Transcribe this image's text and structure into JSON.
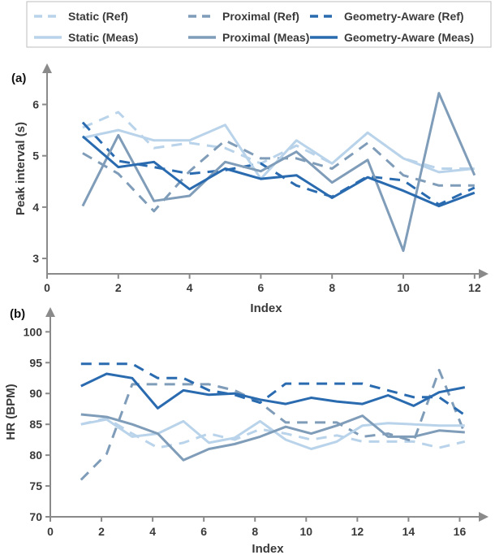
{
  "legend": [
    {
      "label": "Static (Ref)",
      "color": "#b9d3ea",
      "style": "dashed"
    },
    {
      "label": "Proximal (Ref)",
      "color": "#7f9cb9",
      "style": "dashed"
    },
    {
      "label": "Geometry-Aware (Ref)",
      "color": "#2a6bb0",
      "style": "dashed"
    },
    {
      "label": "Static (Meas)",
      "color": "#b9d3ea",
      "style": "solid"
    },
    {
      "label": "Proximal (Meas)",
      "color": "#7f9cb9",
      "style": "solid"
    },
    {
      "label": "Geometry-Aware (Meas)",
      "color": "#2a6bb0",
      "style": "solid"
    }
  ],
  "chart_data": [
    {
      "panel": "(a)",
      "type": "line",
      "xlabel": "Index",
      "ylabel": "Peak interval (s)",
      "xlim": [
        0,
        12.3
      ],
      "ylim": [
        2.7,
        6.8
      ],
      "xticks": [
        0,
        2,
        4,
        6,
        8,
        10,
        12
      ],
      "yticks": [
        3,
        4,
        5,
        6
      ],
      "grid": false,
      "series": [
        {
          "name": "Static (Ref)",
          "color": "#b9d3ea",
          "style": "dashed",
          "x": [
            1,
            2,
            3,
            4,
            5,
            6,
            7,
            8,
            9,
            10,
            11,
            12
          ],
          "y": [
            5.55,
            5.85,
            5.15,
            5.25,
            5.15,
            4.85,
            5.2,
            4.85,
            5.45,
            4.95,
            4.75,
            4.75
          ]
        },
        {
          "name": "Proximal (Ref)",
          "color": "#7f9cb9",
          "style": "dashed",
          "x": [
            1,
            2,
            3,
            4,
            5,
            6,
            7,
            8,
            9,
            10,
            11,
            12
          ],
          "y": [
            5.05,
            4.65,
            3.92,
            4.7,
            5.3,
            4.95,
            4.95,
            4.75,
            5.25,
            4.62,
            4.42,
            4.42
          ]
        },
        {
          "name": "Geometry-Aware (Ref)",
          "color": "#2a6bb0",
          "style": "dashed",
          "x": [
            1,
            2,
            3,
            4,
            5,
            6,
            7,
            8,
            9,
            10,
            11,
            12
          ],
          "y": [
            5.65,
            4.9,
            4.78,
            4.65,
            4.72,
            4.85,
            4.42,
            4.2,
            4.6,
            4.52,
            4.05,
            4.38
          ]
        },
        {
          "name": "Static (Meas)",
          "color": "#b9d3ea",
          "style": "solid",
          "x": [
            1,
            2,
            3,
            4,
            5,
            6,
            7,
            8,
            9,
            10,
            11,
            12
          ],
          "y": [
            5.35,
            5.5,
            5.3,
            5.3,
            5.6,
            4.55,
            5.3,
            4.85,
            5.45,
            4.95,
            4.68,
            4.75
          ]
        },
        {
          "name": "Proximal (Meas)",
          "color": "#7f9cb9",
          "style": "solid",
          "x": [
            1,
            2,
            3,
            4,
            5,
            6,
            7,
            8,
            9,
            10,
            11,
            12
          ],
          "y": [
            4.02,
            5.4,
            4.12,
            4.22,
            4.88,
            4.7,
            5.08,
            4.48,
            4.92,
            3.15,
            6.22,
            4.62
          ]
        },
        {
          "name": "Geometry-Aware (Meas)",
          "color": "#2a6bb0",
          "style": "solid",
          "x": [
            1,
            2,
            3,
            4,
            5,
            6,
            7,
            8,
            9,
            10,
            11,
            12
          ],
          "y": [
            5.38,
            4.78,
            4.88,
            4.35,
            4.75,
            4.55,
            4.62,
            4.18,
            4.58,
            4.32,
            4.02,
            4.28
          ]
        }
      ]
    },
    {
      "panel": "(b)",
      "type": "line",
      "xlabel": "Index",
      "ylabel": "HR (BPM)",
      "xlim": [
        0,
        17
      ],
      "ylim": [
        70,
        104
      ],
      "xticks": [
        0,
        2,
        4,
        6,
        8,
        10,
        12,
        14,
        16
      ],
      "yticks": [
        70,
        75,
        80,
        85,
        90,
        95,
        100
      ],
      "grid": false,
      "series": [
        {
          "name": "Static (Ref)",
          "color": "#b9d3ea",
          "style": "dashed",
          "x": [
            1.2,
            2.2,
            3.2,
            4.2,
            5.2,
            6.2,
            7.2,
            8.2,
            9.2,
            10.2,
            11.2,
            12.2,
            13.2,
            14.2,
            15.2,
            16.2
          ],
          "y": [
            85.0,
            86.0,
            83.5,
            81.2,
            82.0,
            83.5,
            82.5,
            84.2,
            83.5,
            82.5,
            83.2,
            82.2,
            82.2,
            82.2,
            81.2,
            82.2
          ]
        },
        {
          "name": "Proximal (Ref)",
          "color": "#7f9cb9",
          "style": "dashed",
          "x": [
            1.2,
            2.2,
            3.2,
            4.2,
            5.2,
            6.2,
            7.2,
            8.2,
            9.2,
            10.2,
            11.2,
            12.2,
            13.2,
            14.2,
            15.2,
            16.2
          ],
          "y": [
            76.0,
            80.2,
            91.5,
            91.5,
            91.5,
            91.5,
            90.5,
            88.5,
            85.3,
            85.3,
            85.3,
            83.0,
            83.5,
            82.2,
            93.8,
            83.5
          ]
        },
        {
          "name": "Geometry-Aware (Ref)",
          "color": "#2a6bb0",
          "style": "dashed",
          "x": [
            1.2,
            2.2,
            3.2,
            4.2,
            5.2,
            6.2,
            7.2,
            8.2,
            9.2,
            10.2,
            11.2,
            12.2,
            13.2,
            14.2,
            15.2,
            16.2
          ],
          "y": [
            94.8,
            94.8,
            94.8,
            92.5,
            92.5,
            90.5,
            89.8,
            88.5,
            91.6,
            91.6,
            91.6,
            91.6,
            90.5,
            89.4,
            89.4,
            86.5
          ]
        },
        {
          "name": "Static (Meas)",
          "color": "#b9d3ea",
          "style": "solid",
          "x": [
            1.2,
            2.2,
            3.2,
            4.2,
            5.2,
            6.2,
            7.2,
            8.2,
            9.2,
            10.2,
            11.2,
            12.2,
            13.2,
            14.2,
            15.2,
            16.2
          ],
          "y": [
            85.0,
            85.8,
            83.0,
            83.5,
            85.5,
            82.0,
            82.8,
            85.5,
            82.5,
            81.0,
            82.2,
            84.8,
            85.2,
            85.0,
            84.8,
            84.8
          ]
        },
        {
          "name": "Proximal (Meas)",
          "color": "#7f9cb9",
          "style": "solid",
          "x": [
            1.2,
            2.2,
            3.2,
            4.2,
            5.2,
            6.2,
            7.2,
            8.2,
            9.2,
            10.2,
            11.2,
            12.2,
            13.2,
            14.2,
            15.2,
            16.2
          ],
          "y": [
            86.6,
            86.2,
            85.0,
            83.5,
            79.2,
            81.0,
            81.8,
            83.0,
            84.6,
            83.5,
            84.8,
            86.4,
            83.0,
            83.0,
            84.0,
            83.7
          ]
        },
        {
          "name": "Geometry-Aware (Meas)",
          "color": "#2a6bb0",
          "style": "solid",
          "x": [
            1.2,
            2.2,
            3.2,
            4.2,
            5.2,
            6.2,
            7.2,
            8.2,
            9.2,
            10.2,
            11.2,
            12.2,
            13.2,
            14.2,
            15.2,
            16.2
          ],
          "y": [
            91.2,
            93.2,
            92.5,
            87.6,
            90.5,
            89.8,
            90.0,
            89.0,
            88.3,
            89.3,
            88.7,
            88.3,
            89.7,
            88.0,
            90.2,
            91.0
          ]
        }
      ]
    }
  ]
}
